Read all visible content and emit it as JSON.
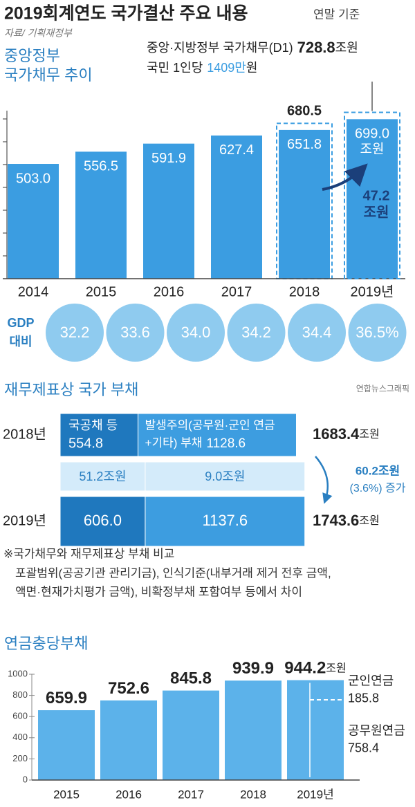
{
  "header": {
    "title": "2019회계연도 국가결산 주요 내용",
    "basis": "연말 기준",
    "source": "자료/ 기획재정부",
    "credit": "연합뉴스그래픽"
  },
  "chart_data": [
    {
      "type": "bar",
      "title": [
        "중앙정부",
        "국가채무 추이"
      ],
      "categories": [
        "2014",
        "2015",
        "2016",
        "2017",
        "2018",
        "2019년"
      ],
      "values": [
        503.0,
        556.5,
        591.9,
        627.4,
        651.8,
        699.0
      ],
      "value_labels": [
        "503.0",
        "556.5",
        "591.9",
        "627.4",
        "651.8",
        "699.0"
      ],
      "unit": "조원",
      "color": "#3b9de1",
      "ylim": [
        0,
        800
      ],
      "yticks": [
        100,
        200,
        300,
        400,
        500,
        600,
        700
      ],
      "outline_values": [
        null,
        null,
        null,
        null,
        680.5,
        null
      ],
      "outline_value_labels": [
        null,
        null,
        null,
        null,
        "680.5",
        null
      ],
      "d1": {
        "label": "중앙·지방정부 국가채무(D1)",
        "value": 728.8,
        "value_label": "728.8",
        "unit": "조원"
      },
      "per_capita": {
        "label": "국민 1인당",
        "value": "1409만",
        "unit": "원"
      },
      "increase": {
        "value": 47.2,
        "value_label": "47.2",
        "unit": "조원"
      },
      "gdp_ratio": {
        "label": [
          "GDP",
          "대비"
        ],
        "values": [
          32.2,
          33.6,
          34.0,
          34.2,
          34.4,
          36.5
        ],
        "value_labels": [
          "32.2",
          "33.6",
          "34.0",
          "34.2",
          "34.4",
          "36.5%"
        ],
        "color": "#8fcbef"
      }
    },
    {
      "type": "stacked_bar",
      "orientation": "horizontal",
      "title": "재무제표상 국가 부채",
      "categories": [
        "2018년",
        "2019년"
      ],
      "xlim": [
        0,
        1750
      ],
      "series": [
        {
          "name": [
            "국공채 등"
          ],
          "color": "#1f78be",
          "values": [
            554.8,
            606.0
          ],
          "value_labels": [
            "554.8",
            "606.0"
          ]
        },
        {
          "name": [
            "발생주의(공무원·군인 연금",
            "+기타) 부채"
          ],
          "color": "#3d9de0",
          "values": [
            1128.6,
            1137.6
          ],
          "value_labels": [
            "1128.6",
            "1137.6"
          ]
        }
      ],
      "changes": {
        "values": [
          51.2,
          9.0
        ],
        "value_labels": [
          "51.2조원",
          "9.0조원"
        ],
        "color": "#d4ebfa"
      },
      "totals": {
        "values": [
          1683.4,
          1743.6
        ],
        "value_labels": [
          "1683.4",
          "1743.6"
        ],
        "unit": "조원"
      },
      "total_change": {
        "value": 60.2,
        "value_label": "60.2조원",
        "note": "(3.6%) 증가"
      }
    },
    {
      "type": "bar",
      "title": "연금충당부채",
      "categories": [
        "2015",
        "2016",
        "2017",
        "2018",
        "2019년"
      ],
      "values": [
        659.9,
        752.6,
        845.8,
        939.9,
        944.2
      ],
      "unit": "조원",
      "color": "#5cb2ea",
      "ylim": [
        0,
        1000
      ],
      "yticks": [
        0,
        200,
        400,
        600,
        800,
        1000
      ],
      "breakdown": [
        {
          "name": "군인연금",
          "value": 185.8
        },
        {
          "name": "공무원연금",
          "value": 758.4
        }
      ]
    }
  ],
  "note": {
    "title": "※국가채무와 재무제표상 부채 비교",
    "lines": [
      "포괄범위(공공기관 관리기금), 인식기준(내부거래 제거 전후 금액,",
      "액면·현재가치평가 금액), 비확정부채 포함여부 등에서 차이"
    ]
  }
}
